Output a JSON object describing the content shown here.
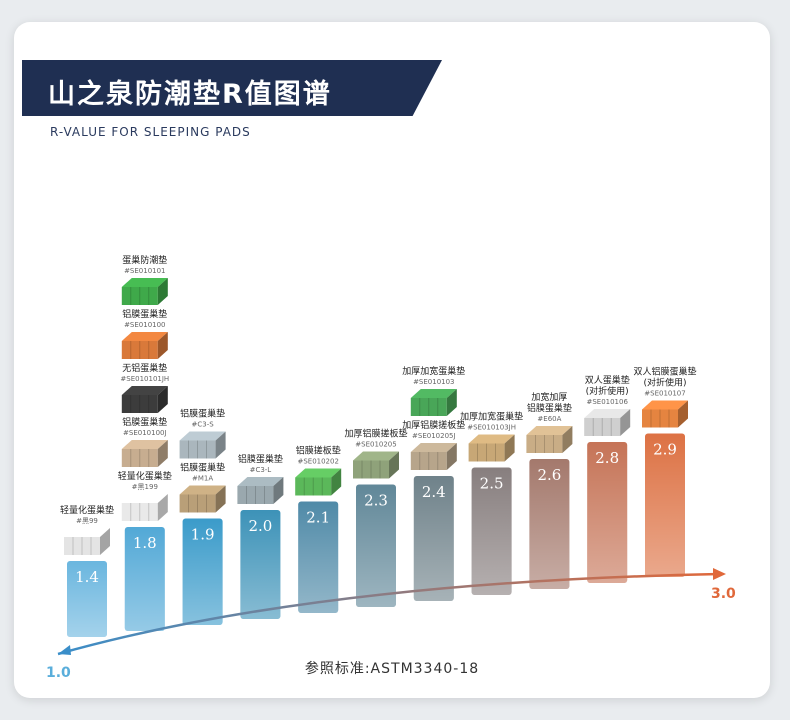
{
  "header": {
    "title": "山之泉防潮垫R值图谱",
    "subtitle": "R-VALUE FOR SLEEPING PADS"
  },
  "footer": {
    "standard": "参照标准:ASTM3340-18"
  },
  "colors": {
    "banner": "#1f2f52",
    "axis_start": "#3a8ec9",
    "axis_end": "#e0683a"
  },
  "chart_data": {
    "type": "bar",
    "title": "山之泉防潮垫R值图谱",
    "subtitle": "R-VALUE FOR SLEEPING PADS",
    "axis": {
      "start_label": "1.0",
      "end_label": "3.0",
      "range": [
        1.0,
        3.0
      ]
    },
    "categories": [
      "1.4",
      "1.8",
      "1.9",
      "2.0",
      "2.1",
      "2.3",
      "2.4",
      "2.5",
      "2.6",
      "2.8",
      "2.9"
    ],
    "values": [
      1.4,
      1.8,
      1.9,
      2.0,
      2.1,
      2.3,
      2.4,
      2.5,
      2.6,
      2.8,
      2.9
    ],
    "bar_colors": [
      "#5aaedb",
      "#3f9fd2",
      "#2590c4",
      "#2786b0",
      "#3c7d9e",
      "#4f7a8d",
      "#5f747d",
      "#7a7070",
      "#9a6a5c",
      "#bf6444",
      "#d9622f"
    ],
    "products": [
      [
        {
          "name": "轻量化蛋巢垫",
          "code": "#黑99",
          "color": "#e4e4e4"
        }
      ],
      [
        {
          "name": "轻量化蛋巢垫",
          "code": "#黑199",
          "color": "#e9e9e9"
        },
        {
          "name": "铝膜蛋巢垫",
          "code": "#SE010100J",
          "color": "#c7ad90"
        },
        {
          "name": "无铝蛋巢垫",
          "code": "#SE010101JH",
          "color": "#3c3c3c"
        },
        {
          "name": "铝膜蛋巢垫",
          "code": "#SE010100",
          "color": "#d9793a"
        },
        {
          "name": "蛋巢防潮垫",
          "code": "#SE010101",
          "color": "#3fa94a"
        }
      ],
      [
        {
          "name": "铝膜蛋巢垫",
          "code": "#M1A",
          "color": "#b99f78"
        },
        {
          "name": "铝膜蛋巢垫",
          "code": "#C3-S",
          "color": "#aab6bd"
        }
      ],
      [
        {
          "name": "铝膜蛋巢垫",
          "code": "#C3-L",
          "color": "#9aa8ae"
        }
      ],
      [
        {
          "name": "铝膜搓板垫",
          "code": "#SE010202",
          "color": "#5bb85a"
        }
      ],
      [
        {
          "name": "加厚铝膜搓板垫",
          "code": "#SE010205",
          "color": "#8fa27a"
        }
      ],
      [
        {
          "name": "加厚铝膜搓板垫",
          "code": "#SE010205J",
          "color": "#b7a58b"
        },
        {
          "name": "加厚加宽蛋巢垫",
          "code": "#SE010103",
          "color": "#49a658"
        }
      ],
      [
        {
          "name": "加厚加宽蛋巢垫",
          "code": "#SE010103JH",
          "color": "#c7a776"
        }
      ],
      [
        {
          "name": "加宽加厚\n铝膜蛋巢垫",
          "code": "#E60A",
          "color": "#c9ad86"
        }
      ],
      [
        {
          "name": "双人蛋巢垫\n(对折使用)",
          "code": "#SE010106",
          "color": "#cfcfcf"
        }
      ],
      [
        {
          "name": "双人铝膜蛋巢垫\n(对折使用)",
          "code": "#SE010107",
          "color": "#e58440"
        }
      ]
    ]
  }
}
